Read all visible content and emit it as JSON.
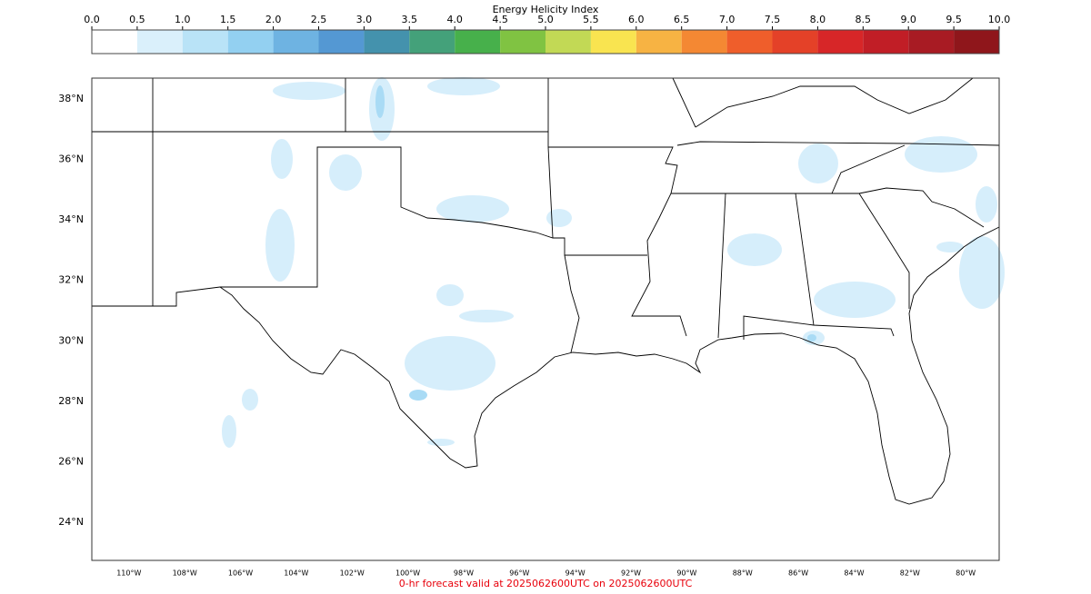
{
  "colorbar": {
    "title": "Energy Helicity Index",
    "ticks": [
      {
        "value": 0,
        "label": "0.0"
      },
      {
        "value": 0.5,
        "label": "0.5"
      },
      {
        "value": 1,
        "label": "1.0"
      },
      {
        "value": 1.5,
        "label": "1.5"
      },
      {
        "value": 2,
        "label": "2.0"
      },
      {
        "value": 2.5,
        "label": "2.5"
      },
      {
        "value": 3,
        "label": "3.0"
      },
      {
        "value": 3.5,
        "label": "3.5"
      },
      {
        "value": 4,
        "label": "4.0"
      },
      {
        "value": 4.5,
        "label": "4.5"
      },
      {
        "value": 5,
        "label": "5.0"
      },
      {
        "value": 5.5,
        "label": "5.5"
      },
      {
        "value": 6,
        "label": "6.0"
      },
      {
        "value": 6.5,
        "label": "6.5"
      },
      {
        "value": 7,
        "label": "7.0"
      },
      {
        "value": 7.5,
        "label": "7.5"
      },
      {
        "value": 8,
        "label": "8.0"
      },
      {
        "value": 8.5,
        "label": "8.5"
      },
      {
        "value": 9,
        "label": "9.0"
      },
      {
        "value": 9.5,
        "label": "9.5"
      },
      {
        "value": 10,
        "label": "10.0"
      }
    ],
    "colors": [
      "#ffffff",
      "#daf0fb",
      "#b9e3f7",
      "#93d0f1",
      "#6eb3e2",
      "#5498d3",
      "#4492ad",
      "#44a17a",
      "#47b04b",
      "#80c342",
      "#c2d955",
      "#f9e450",
      "#f7b343",
      "#f48833",
      "#ef5e2b",
      "#e44128",
      "#d72628",
      "#c11e26",
      "#a81b23",
      "#8f161b"
    ]
  },
  "map": {
    "lat_range": [
      22.74,
      38.69
    ],
    "lon_range": [
      -111.33,
      -78.8
    ],
    "lat_ticks": [
      {
        "value": 38,
        "label": "38°N"
      },
      {
        "value": 36,
        "label": "36°N"
      },
      {
        "value": 34,
        "label": "34°N"
      },
      {
        "value": 32,
        "label": "32°N"
      },
      {
        "value": 30,
        "label": "30°N"
      },
      {
        "value": 28,
        "label": "28°N"
      },
      {
        "value": 26,
        "label": "26°N"
      },
      {
        "value": 24,
        "label": "24°N"
      }
    ],
    "lon_ticks": [
      {
        "value": -110,
        "label": "110°W"
      },
      {
        "value": -108,
        "label": "108°W"
      },
      {
        "value": -106,
        "label": "106°W"
      },
      {
        "value": -104,
        "label": "104°W"
      },
      {
        "value": -102,
        "label": "102°W"
      },
      {
        "value": -100,
        "label": "100°W"
      },
      {
        "value": -98,
        "label": "98°W"
      },
      {
        "value": -96,
        "label": "96°W"
      },
      {
        "value": -94,
        "label": "94°W"
      },
      {
        "value": -92,
        "label": "92°W"
      },
      {
        "value": -90,
        "label": "90°W"
      },
      {
        "value": -88,
        "label": "88°W"
      },
      {
        "value": -86,
        "label": "86°W"
      },
      {
        "value": -84,
        "label": "84°W"
      },
      {
        "value": -82,
        "label": "82°W"
      },
      {
        "value": -80,
        "label": "80°W"
      }
    ]
  },
  "footer": "0-hr forecast valid at 2025062600UTC on 2025062600UTC"
}
